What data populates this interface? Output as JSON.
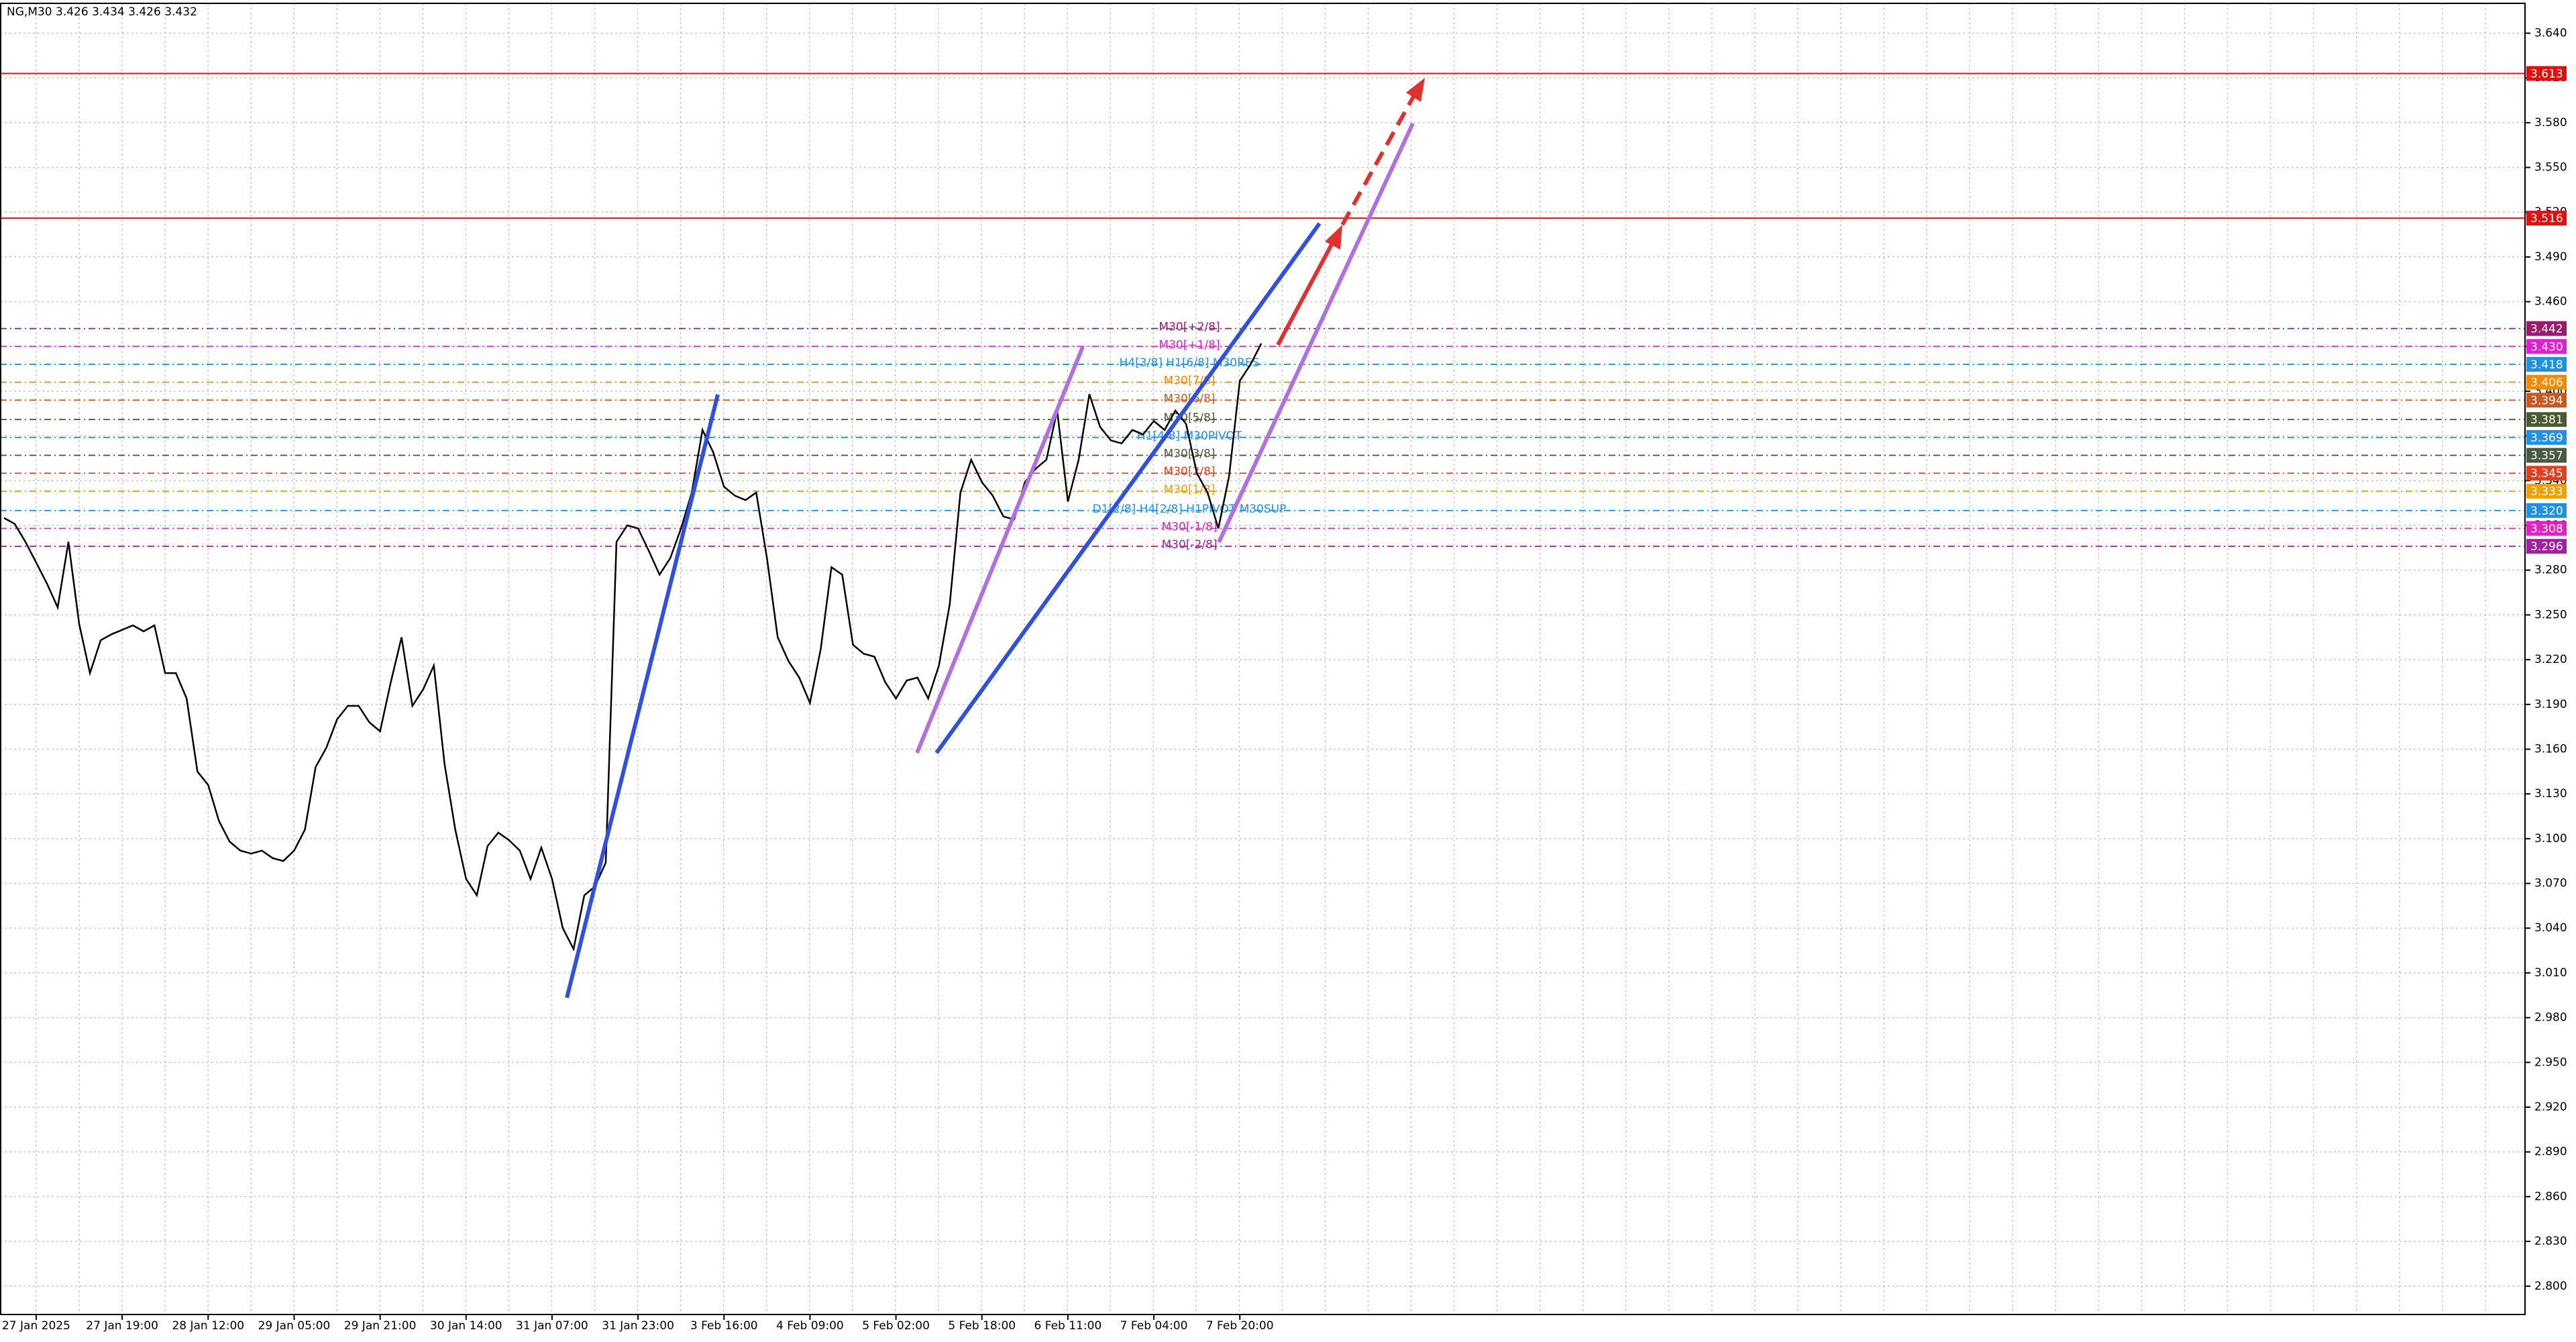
{
  "chart_data": {
    "type": "line",
    "title": "NG,M30  3.426 3.434 3.426 3.432",
    "categories": [
      null,
      null,
      null,
      "27 Jan 2025",
      null,
      null,
      null,
      null,
      null,
      null,
      null,
      "27 Jan 19:00",
      null,
      null,
      null,
      null,
      null,
      null,
      null,
      "28 Jan 12:00",
      null,
      null,
      null,
      null,
      null,
      null,
      null,
      "29 Jan 05:00",
      null,
      null,
      null,
      null,
      null,
      null,
      null,
      "29 Jan 21:00",
      null,
      null,
      null,
      null,
      null,
      null,
      null,
      "30 Jan 14:00",
      null,
      null,
      null,
      null,
      null,
      null,
      null,
      "31 Jan 07:00",
      null,
      null,
      null,
      null,
      null,
      null,
      null,
      "31 Jan 23:00",
      null,
      null,
      null,
      null,
      null,
      null,
      null,
      "3 Feb 16:00",
      null,
      null,
      null,
      null,
      null,
      null,
      null,
      "4 Feb 09:00",
      null,
      null,
      null,
      null,
      null,
      null,
      null,
      "5 Feb 02:00",
      null,
      null,
      null,
      null,
      null,
      null,
      null,
      "5 Feb 18:00",
      null,
      null,
      null,
      null,
      null,
      null,
      null,
      "6 Feb 11:00",
      null,
      null,
      null,
      null,
      null,
      null,
      null,
      "7 Feb 04:00",
      null,
      null,
      null,
      null,
      null,
      null,
      null,
      "7 Feb 20:00",
      null,
      null
    ],
    "series": [
      {
        "name": "NG",
        "color": "#000000",
        "values": [
          3.315,
          3.311,
          3.299,
          3.285,
          3.271,
          3.255,
          3.299,
          3.244,
          3.211,
          3.233,
          3.237,
          3.24,
          3.243,
          3.239,
          3.243,
          3.211,
          3.211,
          3.194,
          3.145,
          3.136,
          3.112,
          3.098,
          3.092,
          3.09,
          3.092,
          3.087,
          3.085,
          3.092,
          3.106,
          3.148,
          3.161,
          3.18,
          3.189,
          3.189,
          3.178,
          3.172,
          3.205,
          3.235,
          3.189,
          3.2,
          3.216,
          3.15,
          3.106,
          3.073,
          3.062,
          3.095,
          3.104,
          3.099,
          3.092,
          3.073,
          3.094,
          3.073,
          3.04,
          3.026,
          3.062,
          3.068,
          3.084,
          3.299,
          3.31,
          3.308,
          3.293,
          3.277,
          3.288,
          3.308,
          3.332,
          3.374,
          3.359,
          3.336,
          3.33,
          3.327,
          3.332,
          3.288,
          3.235,
          3.219,
          3.208,
          3.191,
          3.227,
          3.282,
          3.277,
          3.23,
          3.224,
          3.222,
          3.205,
          3.194,
          3.206,
          3.208,
          3.194,
          3.216,
          3.257,
          3.332,
          3.354,
          3.339,
          3.33,
          3.316,
          3.314,
          3.339,
          3.348,
          3.354,
          3.387,
          3.326,
          3.354,
          3.398,
          3.376,
          3.367,
          3.365,
          3.374,
          3.371,
          3.38,
          3.374,
          3.387,
          3.378,
          3.345,
          3.332,
          3.308,
          3.343,
          3.407,
          3.418,
          3.432
        ]
      }
    ],
    "ylim": [
      2.781,
      3.66
    ],
    "yticks": [
      {
        "value": 2.8,
        "label": "2.800"
      },
      {
        "value": 2.83,
        "label": "2.830"
      },
      {
        "value": 2.86,
        "label": "2.860"
      },
      {
        "value": 2.89,
        "label": "2.890"
      },
      {
        "value": 2.92,
        "label": "2.920"
      },
      {
        "value": 2.95,
        "label": "2.950"
      },
      {
        "value": 2.98,
        "label": "2.980"
      },
      {
        "value": 3.01,
        "label": "3.010"
      },
      {
        "value": 3.04,
        "label": "3.040"
      },
      {
        "value": 3.07,
        "label": "3.070"
      },
      {
        "value": 3.1,
        "label": "3.100"
      },
      {
        "value": 3.13,
        "label": "3.130"
      },
      {
        "value": 3.16,
        "label": "3.160"
      },
      {
        "value": 3.19,
        "label": "3.190"
      },
      {
        "value": 3.22,
        "label": "3.220"
      },
      {
        "value": 3.25,
        "label": "3.250"
      },
      {
        "value": 3.28,
        "label": "3.280"
      },
      {
        "value": 3.31,
        "label": "3.310"
      },
      {
        "value": 3.34,
        "label": "3.340"
      },
      {
        "value": 3.37,
        "label": "3.370"
      },
      {
        "value": 3.4,
        "label": "3.400"
      },
      {
        "value": 3.43,
        "label": "3.430"
      },
      {
        "value": 3.46,
        "label": "3.460"
      },
      {
        "value": 3.49,
        "label": "3.490"
      },
      {
        "value": 3.52,
        "label": "3.520"
      },
      {
        "value": 3.55,
        "label": "3.550"
      },
      {
        "value": 3.58,
        "label": "3.580"
      },
      {
        "value": 3.61,
        "label": "3.610"
      },
      {
        "value": 3.64,
        "label": "3.640"
      }
    ],
    "grid": true,
    "levels": [
      {
        "value": 3.613,
        "color": "#e01010",
        "style": "solid"
      },
      {
        "value": 3.516,
        "color": "#e01010",
        "style": "solid"
      },
      {
        "value": 3.442,
        "color": "#9b1a6e",
        "style": "dashed",
        "name": "M30[+2/8]"
      },
      {
        "value": {
          "value": 3.43,
          "label": "3.430"
        },
        "color": "#e020d0",
        "style": "dashed",
        "name": "M30[+1/8]"
      },
      {
        "value": 3.418,
        "color": "#2090e0",
        "style": "dashed",
        "name": "H4[3/8] H1[6/8] M30RES"
      },
      {
        "value": 3.406,
        "color": "#f08a00",
        "style": "dashed",
        "name": "M30[7/8]"
      },
      {
        "value": 3.394,
        "color": "#c85a20",
        "style": "dashed",
        "name": "M30[6/8]"
      },
      {
        "value": 3.381,
        "color": "#4a5a30",
        "style": "dashed",
        "name": "M30[5/8]"
      },
      {
        "value": 3.369,
        "color": "#2090e0",
        "style": "dashed",
        "name": "H1[4/8] M30PIVOT"
      },
      {
        "value": 3.357,
        "color": "#4a5a40",
        "style": "dashed",
        "name": "M30[3/8]"
      },
      {
        "value": 3.345,
        "color": "#e04020",
        "style": "dashed",
        "name": "M30[2/8]"
      },
      {
        "value": 3.333,
        "color": "#f0a000",
        "style": "dashed",
        "name": "M30[1/8]"
      },
      {
        "value": {
          "value": 3.32,
          "label": "3.320"
        },
        "color": "#2090e0",
        "style": "dashed",
        "name": "D1[2/8] H4[2/8] H1PIVOT M30SUP"
      },
      {
        "value": 3.308,
        "color": "#e020c0",
        "style": "dashed",
        "name": "M30[-1/8]"
      },
      {
        "value": 3.296,
        "color": "#a020a0",
        "style": "dashed",
        "name": "M30[-2/8]"
      }
    ]
  }
}
